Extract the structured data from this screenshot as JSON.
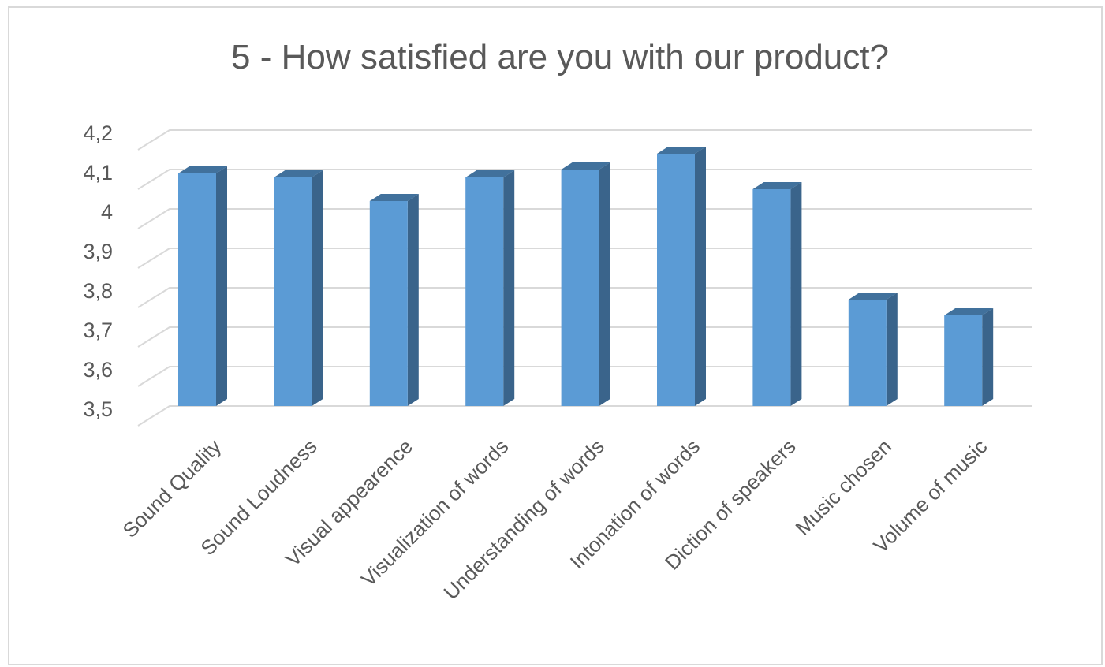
{
  "chart_data": {
    "type": "bar",
    "title": "5 - How satisfied are you with our product?",
    "categories": [
      "Sound Quality",
      "Sound Loudness",
      "Visual appearence",
      "Visualization of words",
      "Understanding of words",
      "Intonation of words",
      "Diction of speakers",
      "Music chosen",
      "Volume of music"
    ],
    "values": [
      4.09,
      4.08,
      4.02,
      4.08,
      4.1,
      4.14,
      4.05,
      3.77,
      3.73
    ],
    "ylim": [
      3.5,
      4.2
    ],
    "yticks": [
      "3,5",
      "3,6",
      "3,7",
      "3,8",
      "3,9",
      "4",
      "4,1",
      "4,2"
    ],
    "grid": true,
    "legend": "none",
    "colors": {
      "bar_front": "#5b9bd5",
      "bar_side": "#3a648b",
      "bar_top": "#41719c",
      "grid": "#d9d9d9",
      "text": "#595959"
    }
  }
}
